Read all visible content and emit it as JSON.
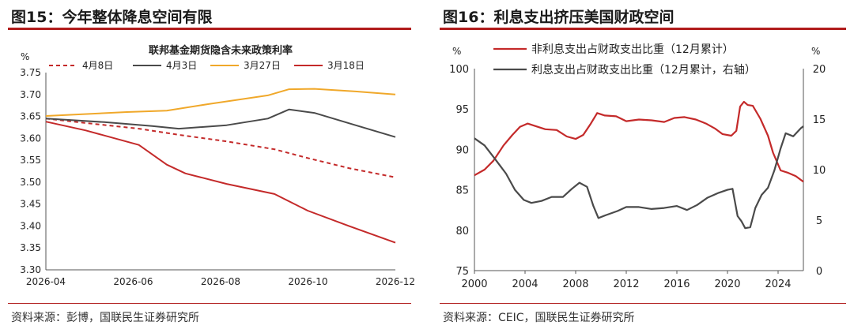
{
  "colors": {
    "accent_red": "#b01c1c",
    "red": "#c42a2a",
    "dark": "#4a4a4a",
    "orange": "#f0a82a"
  },
  "panels": {
    "left": {
      "title": "图15：今年整体降息空间有限",
      "source": "资料来源：彭博，国联民生证券研究所"
    },
    "right": {
      "title": "图16：利息支出挤压美国财政空间",
      "source": "资料来源：CEIC，国联民生证券研究所"
    }
  },
  "chart_data": [
    {
      "type": "line",
      "title": "联邦基金期货隐含未来政策利率",
      "ylabel": "%",
      "ylim": [
        3.3,
        3.75
      ],
      "yticks": [
        "3.30",
        "3.35",
        "3.40",
        "3.45",
        "3.50",
        "3.55",
        "3.60",
        "3.65",
        "3.70",
        "3.75"
      ],
      "x_range": [
        "2026-04-01",
        "2026-12-20"
      ],
      "xticks": [
        "2026-04",
        "2026-06",
        "2026-08",
        "2026-10",
        "2026-12"
      ],
      "legend_position": "top",
      "series": [
        {
          "name": "4月8日",
          "style": "dashed",
          "color": "#c42a2a",
          "x": [
            "2026-04-01",
            "2026-05-01",
            "2026-06-10",
            "2026-07-10",
            "2026-08-15",
            "2026-09-20",
            "2026-10-15",
            "2026-11-15",
            "2026-12-20"
          ],
          "y": [
            3.645,
            3.635,
            3.622,
            3.608,
            3.593,
            3.575,
            3.555,
            3.532,
            3.511
          ]
        },
        {
          "name": "4月3日",
          "style": "solid",
          "color": "#4a4a4a",
          "x": [
            "2026-04-01",
            "2026-05-15",
            "2026-06-20",
            "2026-07-10",
            "2026-08-15",
            "2026-09-15",
            "2026-10-01",
            "2026-10-20",
            "2026-11-20",
            "2026-12-20"
          ],
          "y": [
            3.645,
            3.637,
            3.628,
            3.622,
            3.63,
            3.645,
            3.666,
            3.658,
            3.63,
            3.603
          ]
        },
        {
          "name": "3月27日",
          "style": "solid",
          "color": "#f0a82a",
          "x": [
            "2026-04-01",
            "2026-06-01",
            "2026-07-01",
            "2026-08-01",
            "2026-09-15",
            "2026-10-01",
            "2026-10-20",
            "2026-11-20",
            "2026-12-20"
          ],
          "y": [
            3.651,
            3.66,
            3.663,
            3.678,
            3.698,
            3.712,
            3.713,
            3.707,
            3.7
          ]
        },
        {
          "name": "3月18日",
          "style": "solid",
          "color": "#c42a2a",
          "x": [
            "2026-04-01",
            "2026-05-01",
            "2026-06-10",
            "2026-07-01",
            "2026-07-15",
            "2026-08-15",
            "2026-09-20",
            "2026-10-15",
            "2026-11-15",
            "2026-12-20"
          ],
          "y": [
            3.638,
            3.618,
            3.585,
            3.54,
            3.52,
            3.496,
            3.473,
            3.435,
            3.4,
            3.362
          ]
        }
      ]
    },
    {
      "type": "line",
      "ylabel_left": "%",
      "ylabel_right": "%",
      "ylim_left": [
        75,
        100
      ],
      "ylim_right": [
        0,
        20
      ],
      "yticks_left": [
        "75",
        "80",
        "85",
        "90",
        "95",
        "100"
      ],
      "yticks_right": [
        "0",
        "5",
        "10",
        "15",
        "20"
      ],
      "x_range": [
        2000,
        2026
      ],
      "xticks": [
        "2000",
        "2004",
        "2008",
        "2012",
        "2016",
        "2020",
        "2024"
      ],
      "legend_position": "top",
      "series": [
        {
          "name": "非利息支出占财政支出比重（12月累计）",
          "axis": "left",
          "color": "#c42a2a",
          "x": [
            2000,
            2000.8,
            2001.5,
            2002.3,
            2003,
            2003.6,
            2004.2,
            2004.8,
            2005.6,
            2006.5,
            2007.3,
            2008,
            2008.6,
            2009.2,
            2009.7,
            2010.3,
            2011.2,
            2012,
            2013,
            2014,
            2015,
            2015.8,
            2016.6,
            2017.5,
            2018.3,
            2019,
            2019.6,
            2020.3,
            2020.7,
            2021.0,
            2021.3,
            2021.6,
            2022.0,
            2022.6,
            2023.2,
            2023.6,
            2024.2,
            2024.8,
            2025.4,
            2026
          ],
          "y": [
            86.8,
            87.5,
            88.6,
            90.5,
            91.8,
            92.8,
            93.2,
            92.9,
            92.5,
            92.4,
            91.6,
            91.3,
            91.8,
            93.2,
            94.5,
            94.2,
            94.1,
            93.5,
            93.7,
            93.6,
            93.4,
            93.9,
            94.0,
            93.7,
            93.2,
            92.6,
            91.9,
            91.7,
            92.3,
            95.3,
            95.9,
            95.5,
            95.4,
            93.8,
            91.7,
            89.6,
            87.4,
            87.1,
            86.7,
            86.0
          ]
        },
        {
          "name": "利息支出占财政支出比重（12月累计，右轴）",
          "axis": "right",
          "color": "#4a4a4a",
          "x": [
            2000,
            2000.8,
            2001.6,
            2002.5,
            2003.2,
            2003.9,
            2004.5,
            2005.3,
            2006.1,
            2007,
            2007.7,
            2008.3,
            2008.9,
            2009.4,
            2009.8,
            2010.4,
            2011.3,
            2012,
            2013,
            2014,
            2015,
            2016,
            2016.8,
            2017.6,
            2018.4,
            2019.3,
            2020,
            2020.4,
            2020.8,
            2021.1,
            2021.4,
            2021.8,
            2022.2,
            2022.7,
            2023.2,
            2023.7,
            2024.2,
            2024.6,
            2025.2,
            2025.8,
            2026
          ],
          "y": [
            13.1,
            12.4,
            11.1,
            9.6,
            8.0,
            7.0,
            6.7,
            6.9,
            7.3,
            7.3,
            8.1,
            8.7,
            8.3,
            6.4,
            5.2,
            5.5,
            5.9,
            6.3,
            6.3,
            6.1,
            6.2,
            6.4,
            6.0,
            6.5,
            7.2,
            7.7,
            8.0,
            8.1,
            5.4,
            4.9,
            4.2,
            4.3,
            6.2,
            7.5,
            8.2,
            9.9,
            12.1,
            13.6,
            13.3,
            14.1,
            14.3
          ]
        }
      ]
    }
  ]
}
